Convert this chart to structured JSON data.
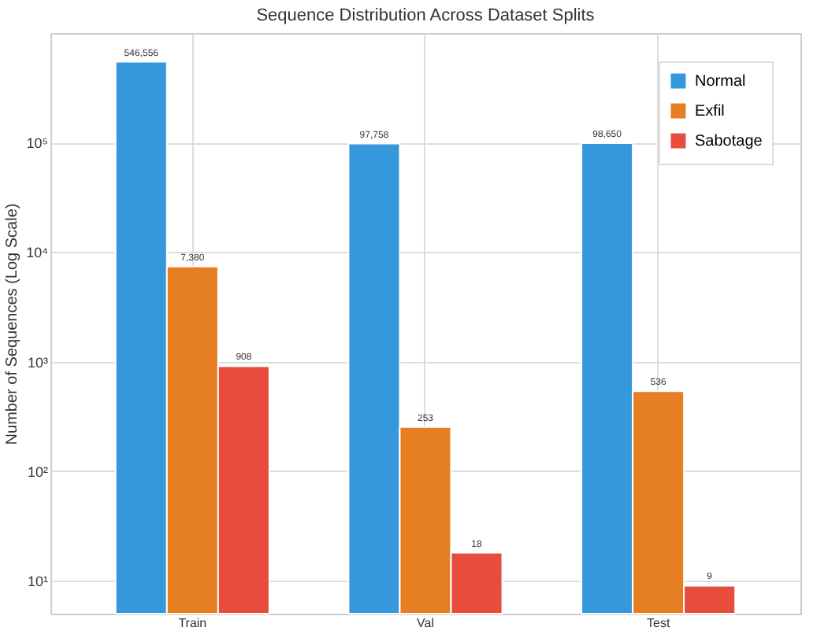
{
  "chart_data": {
    "type": "bar",
    "title": "Sequence Distribution Across Dataset Splits",
    "ylabel": "Number of Sequences (Log Scale)",
    "categories": [
      "Train",
      "Val",
      "Test"
    ],
    "series": [
      {
        "name": "Normal",
        "color": "#3498db",
        "values": [
          546556,
          97758,
          98650
        ],
        "value_labels": [
          "546,556",
          "97,758",
          "98,650"
        ]
      },
      {
        "name": "Exfil",
        "color": "#e67e22",
        "values": [
          7380,
          253,
          536
        ],
        "value_labels": [
          "7,380",
          "253",
          "536"
        ]
      },
      {
        "name": "Sabotage",
        "color": "#e74c3c",
        "values": [
          908,
          18,
          9
        ],
        "value_labels": [
          "908",
          "18",
          "9"
        ]
      }
    ],
    "log": "y",
    "ylim": [
      5,
      1000000
    ],
    "yticks": [
      {
        "value": 10,
        "label": "10¹"
      },
      {
        "value": 100,
        "label": "10²"
      },
      {
        "value": 1000,
        "label": "10³"
      },
      {
        "value": 10000,
        "label": "10⁴"
      },
      {
        "value": 100000,
        "label": "10⁵"
      }
    ],
    "grid": true,
    "legend": "top right"
  }
}
